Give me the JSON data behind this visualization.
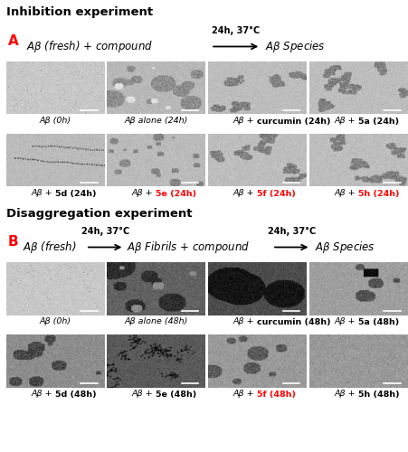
{
  "title_inhibition": "Inhibition experiment",
  "title_disaggregation": "Disaggregation experiment",
  "label_A": "A",
  "label_B": "B",
  "inhibition_arrow_text": "24h, 37°C",
  "disaggregation_arrow1_text": "24h, 37°C",
  "disaggregation_arrow2_text": "24h, 37°C",
  "inhibition_labels_row1": [
    "Aβ (0h)",
    "Aβ alone (24h)",
    "Aβ + curcumin (24h)",
    "Aβ + 5a (24h)"
  ],
  "inhibition_labels_row2": [
    "Aβ + 5d (24h)",
    "Aβ + 5e (24h)",
    "Aβ + 5f (24h)",
    "Aβ + 5h (24h)"
  ],
  "inhibition_red_row2": [
    false,
    true,
    true,
    true
  ],
  "inhibition_bold_row1": [
    false,
    false,
    false,
    true
  ],
  "inhibition_bold_row2": [
    true,
    true,
    true,
    true
  ],
  "disaggregation_labels_row1": [
    "Aβ (0h)",
    "Aβ alone (48h)",
    "Aβ + curcumin (48h)",
    "Aβ + 5a (48h)"
  ],
  "disaggregation_labels_row2": [
    "Aβ + 5d (48h)",
    "Aβ + 5e (48h)",
    "Aβ + 5f (48h)",
    "Aβ + 5h (48h)"
  ],
  "disaggregation_red_row2": [
    false,
    false,
    true,
    false
  ],
  "disaggregation_bold_row1": [
    false,
    false,
    false,
    true
  ],
  "disaggregation_bold_row2": [
    true,
    true,
    true,
    true
  ],
  "bg_color": "#ffffff"
}
